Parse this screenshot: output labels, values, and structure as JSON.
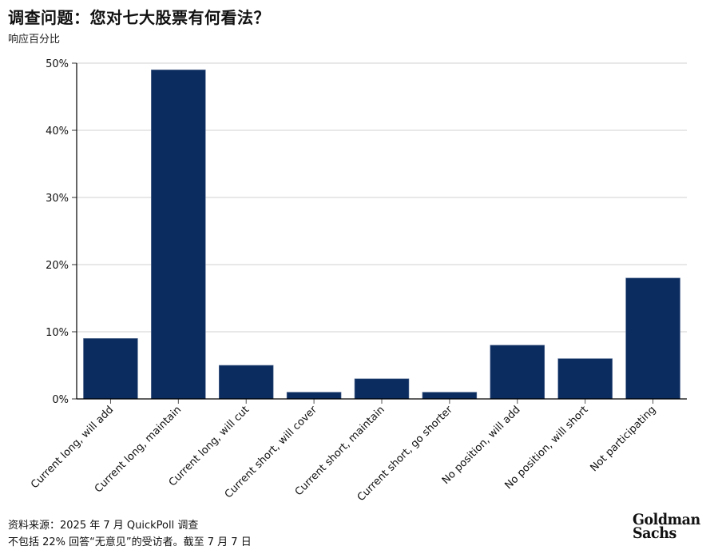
{
  "header": {
    "title": "调查问题：您对七大股票有何看法？",
    "subtitle": "响应百分比"
  },
  "footer": {
    "source": "资料来源：2025 年 7 月 QuickPoll 调查",
    "note": "不包括 22% 回答“无意见”的受访者。截至 7 月 7 日"
  },
  "logo": {
    "line1": "Goldman",
    "line2": "Sachs"
  },
  "colors": {
    "bar": "#0b2c5f",
    "grid": "#d0d0d0",
    "axis": "#000000"
  },
  "chart_data": {
    "type": "bar",
    "title": "调查问题：您对七大股票有何看法？",
    "subtitle": "响应百分比",
    "xlabel": "",
    "ylabel": "响应百分比",
    "categories": [
      "Current long, will add",
      "Current long, maintain",
      "Current long, will cut",
      "Current short, will cover",
      "Current short, maintain",
      "Current short, go shorter",
      "No position, will add",
      "No position, will short",
      "Not participating"
    ],
    "values": [
      9,
      49,
      5,
      1,
      3,
      1,
      8,
      6,
      18
    ],
    "unit": "%",
    "ylim": [
      0,
      50
    ],
    "yticks": [
      "0%",
      "10%",
      "20%",
      "30%",
      "40%",
      "50%"
    ],
    "grid": true,
    "legend": "none",
    "xtick_rotation": -45
  }
}
